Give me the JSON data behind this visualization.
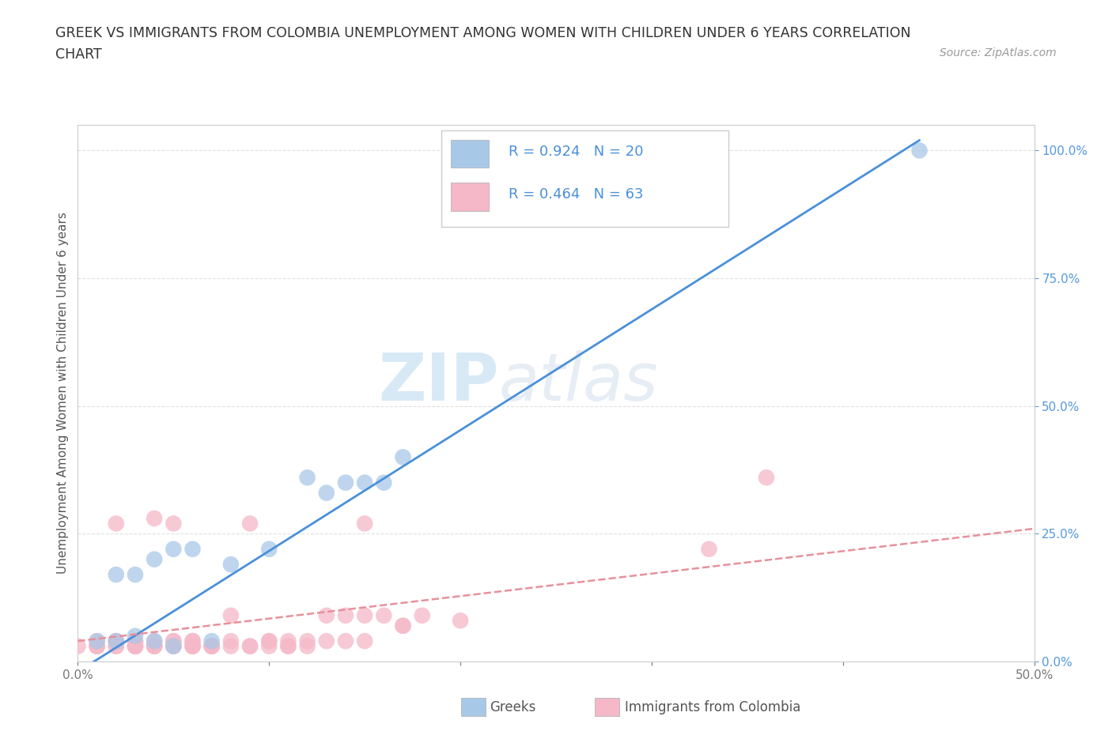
{
  "title_line1": "GREEK VS IMMIGRANTS FROM COLOMBIA UNEMPLOYMENT AMONG WOMEN WITH CHILDREN UNDER 6 YEARS CORRELATION",
  "title_line2": "CHART",
  "source_text": "Source: ZipAtlas.com",
  "ylabel": "Unemployment Among Women with Children Under 6 years",
  "xlim": [
    0,
    0.5
  ],
  "ylim": [
    0,
    1.05
  ],
  "yticks": [
    0.0,
    0.25,
    0.5,
    0.75,
    1.0
  ],
  "greek_color": "#a8c8e8",
  "colombia_color": "#f5b8c8",
  "greek_R": 0.924,
  "greek_N": 20,
  "colombia_R": 0.464,
  "colombia_N": 63,
  "legend_label_greek": "Greeks",
  "legend_label_colombia": "Immigrants from Colombia",
  "watermark_zip": "ZIP",
  "watermark_atlas": "atlas",
  "background_color": "#ffffff",
  "title_color": "#333333",
  "axis_color": "#cccccc",
  "greek_line_color": "#4a90d9",
  "colombia_line_color": "#e8909a",
  "grid_color": "#e0e0e0",
  "greek_scatter_x": [
    0.01,
    0.02,
    0.02,
    0.03,
    0.03,
    0.04,
    0.04,
    0.05,
    0.05,
    0.06,
    0.07,
    0.08,
    0.1,
    0.12,
    0.13,
    0.14,
    0.15,
    0.16,
    0.17,
    0.44
  ],
  "greek_scatter_y": [
    0.04,
    0.04,
    0.17,
    0.17,
    0.05,
    0.04,
    0.2,
    0.03,
    0.22,
    0.22,
    0.04,
    0.19,
    0.22,
    0.36,
    0.33,
    0.35,
    0.35,
    0.35,
    0.4,
    1.0
  ],
  "colombia_scatter_x": [
    0.0,
    0.01,
    0.01,
    0.01,
    0.01,
    0.02,
    0.02,
    0.02,
    0.02,
    0.02,
    0.03,
    0.03,
    0.03,
    0.03,
    0.03,
    0.03,
    0.04,
    0.04,
    0.04,
    0.04,
    0.04,
    0.05,
    0.05,
    0.05,
    0.05,
    0.05,
    0.06,
    0.06,
    0.06,
    0.06,
    0.06,
    0.07,
    0.07,
    0.07,
    0.07,
    0.08,
    0.08,
    0.08,
    0.09,
    0.09,
    0.09,
    0.1,
    0.1,
    0.1,
    0.11,
    0.11,
    0.11,
    0.12,
    0.12,
    0.13,
    0.13,
    0.14,
    0.14,
    0.15,
    0.15,
    0.15,
    0.16,
    0.17,
    0.17,
    0.18,
    0.2,
    0.33,
    0.36
  ],
  "colombia_scatter_y": [
    0.03,
    0.03,
    0.04,
    0.03,
    0.03,
    0.04,
    0.03,
    0.03,
    0.04,
    0.27,
    0.03,
    0.04,
    0.03,
    0.04,
    0.03,
    0.03,
    0.03,
    0.04,
    0.03,
    0.28,
    0.03,
    0.03,
    0.04,
    0.03,
    0.04,
    0.27,
    0.03,
    0.04,
    0.03,
    0.04,
    0.03,
    0.03,
    0.03,
    0.03,
    0.03,
    0.04,
    0.03,
    0.09,
    0.27,
    0.03,
    0.03,
    0.04,
    0.03,
    0.04,
    0.03,
    0.04,
    0.03,
    0.04,
    0.03,
    0.04,
    0.09,
    0.04,
    0.09,
    0.04,
    0.27,
    0.09,
    0.09,
    0.07,
    0.07,
    0.09,
    0.08,
    0.22,
    0.36
  ],
  "greek_line_x": [
    0.0,
    0.44
  ],
  "greek_line_y": [
    -0.02,
    1.02
  ],
  "colombia_line_x": [
    0.0,
    0.5
  ],
  "colombia_line_y": [
    0.04,
    0.26
  ],
  "colombia_line_style": "--"
}
